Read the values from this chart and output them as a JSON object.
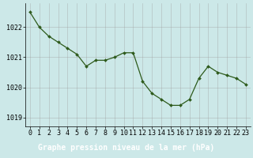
{
  "hours": [
    0,
    1,
    2,
    3,
    4,
    5,
    6,
    7,
    8,
    9,
    10,
    11,
    12,
    13,
    14,
    15,
    16,
    17,
    18,
    19,
    20,
    21,
    22,
    23
  ],
  "pressure": [
    1022.5,
    1022.0,
    1021.7,
    1021.5,
    1021.3,
    1021.1,
    1020.7,
    1020.9,
    1020.9,
    1021.0,
    1021.15,
    1021.15,
    1020.2,
    1019.8,
    1019.6,
    1019.4,
    1019.4,
    1019.6,
    1020.3,
    1020.7,
    1020.5,
    1020.4,
    1020.3,
    1020.1
  ],
  "line_color": "#2d5a1b",
  "marker_color": "#2d5a1b",
  "bg_color": "#cce8e8",
  "grid_color": "#999999",
  "xlabel": "Graphe pression niveau de la mer (hPa)",
  "xlabel_bg": "#3a7a2a",
  "xlabel_color": "#ffffff",
  "ylabel_ticks": [
    1019,
    1020,
    1021,
    1022
  ],
  "ylim": [
    1018.7,
    1022.8
  ],
  "xlim": [
    -0.5,
    23.5
  ],
  "xtick_labels": [
    "0",
    "1",
    "2",
    "3",
    "4",
    "5",
    "6",
    "7",
    "8",
    "9",
    "10",
    "11",
    "12",
    "13",
    "14",
    "15",
    "16",
    "17",
    "18",
    "19",
    "20",
    "21",
    "22",
    "23"
  ],
  "tick_fontsize": 6.0,
  "xlabel_fontsize": 7.0,
  "title_color": "#2d5a1b"
}
